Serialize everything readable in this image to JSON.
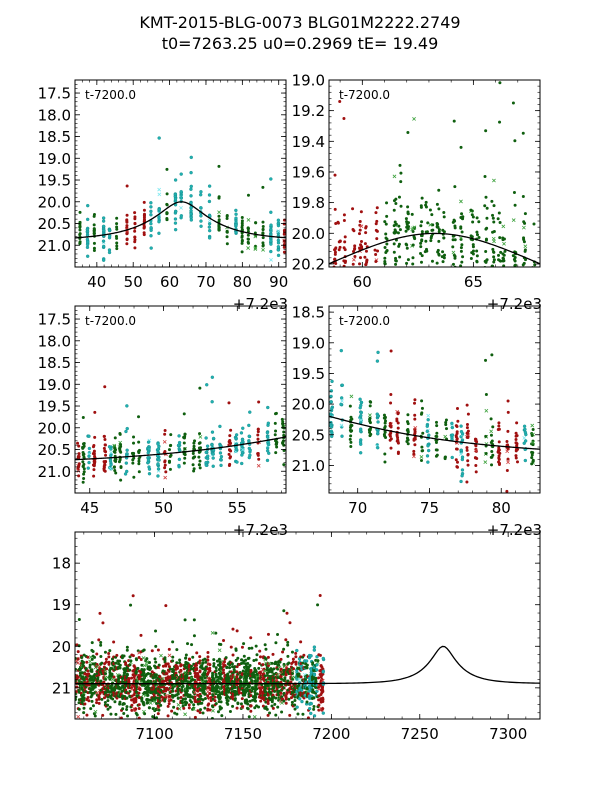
{
  "title": {
    "line1": "KMT-2015-BLG-0073 BLG01M2222.2749",
    "line2": "t0=7263.25 u0=0.2969 tE=  19.49"
  },
  "colors": {
    "red": "#a01010",
    "green": "#0f5f0f",
    "cyan": "#20b0b0",
    "cyan_light": "#7ee8f0",
    "green_light": "#3aa03a",
    "red_light": "#d04040",
    "model": "#000000",
    "axis": "#000000"
  },
  "chart_data": [
    {
      "type": "scatter",
      "panel": "top-left",
      "annotation": "t-7200.0",
      "x_offset_label": "+7.2e3",
      "xlim": [
        34,
        92
      ],
      "ylim": [
        21.5,
        17.2
      ],
      "xticks": [
        "40",
        "50",
        "60",
        "70",
        "80",
        "90"
      ],
      "xtick_values": [
        40,
        50,
        60,
        70,
        80,
        90
      ],
      "yticks": [
        "17.5",
        "18.0",
        "18.5",
        "19.0",
        "19.5",
        "20.0",
        "20.5",
        "21.0"
      ],
      "ytick_values": [
        17.5,
        18.0,
        18.5,
        19.0,
        19.5,
        20.0,
        20.5,
        21.0
      ],
      "series": [
        "red",
        "green",
        "cyan"
      ],
      "model": {
        "t0": 63.25,
        "u0": 0.2969,
        "tE": 19.49
      }
    },
    {
      "type": "scatter",
      "panel": "top-right",
      "annotation": "t-7200.0",
      "x_offset_label": "+7.2e3",
      "xlim": [
        58.5,
        68
      ],
      "ylim": [
        20.22,
        19.0
      ],
      "xticks": [
        "60",
        "65"
      ],
      "xtick_values": [
        60,
        65
      ],
      "yticks": [
        "19.0",
        "19.2",
        "19.4",
        "19.6",
        "19.8",
        "20.0",
        "20.2"
      ],
      "ytick_values": [
        19.0,
        19.2,
        19.4,
        19.6,
        19.8,
        20.0,
        20.2
      ],
      "series": [
        "red",
        "green",
        "cyan"
      ],
      "model": {
        "t0": 63.25,
        "u0": 0.2969,
        "tE": 19.49
      }
    },
    {
      "type": "scatter",
      "panel": "middle-left",
      "annotation": "t-7200.0",
      "x_offset_label": "+7.2e3",
      "xlim": [
        44,
        58.3
      ],
      "ylim": [
        21.5,
        17.2
      ],
      "xticks": [
        "45",
        "50",
        "55"
      ],
      "xtick_values": [
        45,
        50,
        55
      ],
      "yticks": [
        "17.5",
        "18.0",
        "18.5",
        "19.0",
        "19.5",
        "20.0",
        "20.5",
        "21.0"
      ],
      "ytick_values": [
        17.5,
        18.0,
        18.5,
        19.0,
        19.5,
        20.0,
        20.5,
        21.0
      ],
      "series": [
        "red",
        "green",
        "cyan"
      ],
      "model": {
        "t0": 63.25,
        "u0": 0.2969,
        "tE": 19.49
      }
    },
    {
      "type": "scatter",
      "panel": "middle-right",
      "annotation": "t-7200.0",
      "x_offset_label": "+7.2e3",
      "xlim": [
        68,
        82.7
      ],
      "ylim": [
        21.45,
        18.4
      ],
      "xticks": [
        "70",
        "75",
        "80"
      ],
      "xtick_values": [
        70,
        75,
        80
      ],
      "yticks": [
        "18.5",
        "19.0",
        "19.5",
        "20.0",
        "20.5",
        "21.0"
      ],
      "ytick_values": [
        18.5,
        19.0,
        19.5,
        20.0,
        20.5,
        21.0
      ],
      "series": [
        "red",
        "green",
        "cyan"
      ],
      "model": {
        "t0": 63.25,
        "u0": 0.2969,
        "tE": 19.49
      }
    },
    {
      "type": "scatter",
      "panel": "bottom",
      "annotation": "",
      "x_offset_label": "",
      "xlim": [
        7055,
        7318
      ],
      "ylim": [
        21.75,
        17.25
      ],
      "xticks": [
        "7100",
        "7150",
        "7200",
        "7250",
        "7300"
      ],
      "xtick_values": [
        7100,
        7150,
        7200,
        7250,
        7300
      ],
      "yticks": [
        "18",
        "19",
        "20",
        "21"
      ],
      "ytick_values": [
        18,
        19,
        20,
        21
      ],
      "series": [
        "red",
        "green",
        "cyan"
      ],
      "model": {
        "t0": 7263.25,
        "u0": 0.2969,
        "tE": 19.49
      }
    }
  ],
  "baseline_mag": 20.9
}
